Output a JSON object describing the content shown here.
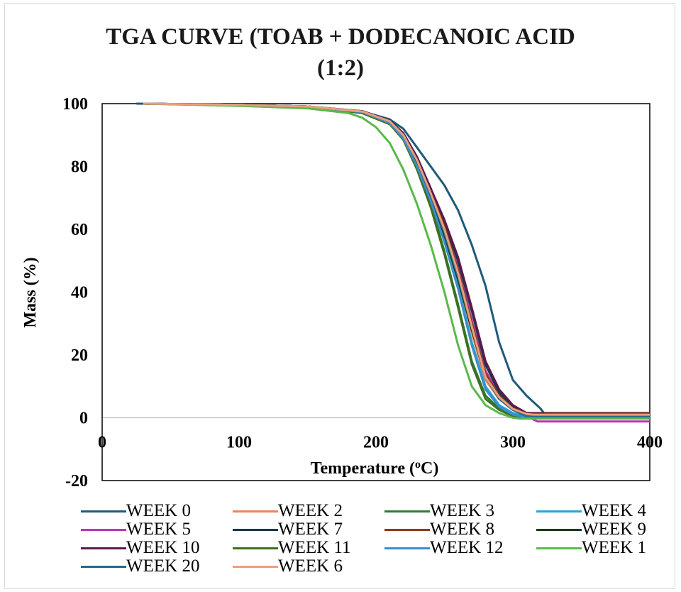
{
  "chart_data": {
    "type": "line",
    "title": "TGA CURVE (TOAB + DODECANOIC ACID (1:2)",
    "title_lines": [
      "TGA CURVE (TOAB + DODECANOIC ACID",
      "(1:2)"
    ],
    "xlabel": "Temperature (oC)",
    "xlabel_pre": "Temperature (",
    "xlabel_sup": "o",
    "xlabel_post": "C)",
    "ylabel": "Mass  (%)",
    "xlim": [
      0,
      400
    ],
    "ylim": [
      -20,
      100
    ],
    "xticks": [
      "0",
      "100",
      "200",
      "300",
      "400"
    ],
    "yticks": [
      "-20",
      "0",
      "20",
      "40",
      "60",
      "80",
      "100"
    ],
    "grid": false,
    "legend_position": "bottom",
    "series": [
      {
        "name": "WEEK 0",
        "color": "#1f5a7a",
        "x": [
          25,
          100,
          150,
          190,
          210,
          220,
          230,
          240,
          250,
          260,
          270,
          280,
          290,
          300,
          310,
          320,
          323,
          350,
          400
        ],
        "y": [
          100,
          99.6,
          99.1,
          97.5,
          95,
          92,
          86,
          80,
          74,
          66,
          55,
          42,
          24,
          12,
          7,
          3,
          1.3,
          1.3,
          1.3
        ]
      },
      {
        "name": "WEEK 2",
        "color": "#e8875a",
        "x": [
          30,
          100,
          150,
          190,
          210,
          220,
          230,
          240,
          250,
          260,
          270,
          280,
          290,
          300,
          310,
          315,
          400
        ],
        "y": [
          100,
          99.6,
          99.1,
          97.3,
          94,
          90,
          82,
          72,
          60,
          45,
          27,
          12,
          6,
          3,
          1.5,
          1.2,
          1.2
        ]
      },
      {
        "name": "WEEK 3",
        "color": "#2e7d32",
        "x": [
          30,
          100,
          150,
          190,
          210,
          220,
          230,
          240,
          250,
          260,
          270,
          280,
          290,
          300,
          310,
          400
        ],
        "y": [
          100,
          99.5,
          99,
          97,
          93.5,
          89,
          80,
          68,
          53,
          36,
          18,
          7,
          3,
          1,
          0,
          0
        ]
      },
      {
        "name": "WEEK 4",
        "color": "#29a3d6",
        "x": [
          30,
          100,
          150,
          190,
          210,
          220,
          230,
          240,
          250,
          260,
          270,
          280,
          290,
          300,
          310,
          320,
          400
        ],
        "y": [
          100,
          99.6,
          99,
          97.4,
          94,
          89.5,
          81,
          70,
          57,
          42,
          24,
          10,
          4,
          1.5,
          0.3,
          0,
          0
        ]
      },
      {
        "name": "WEEK 5",
        "color": "#b339b3",
        "x": [
          30,
          100,
          150,
          190,
          210,
          220,
          230,
          240,
          250,
          260,
          270,
          280,
          290,
          300,
          310,
          318,
          400
        ],
        "y": [
          100,
          99.6,
          99.1,
          97.5,
          94.5,
          90,
          82,
          72,
          61,
          48,
          31,
          15,
          7,
          3,
          0.5,
          -1.2,
          -1.2
        ]
      },
      {
        "name": "WEEK 7",
        "color": "#14384f",
        "x": [
          30,
          100,
          150,
          190,
          210,
          220,
          230,
          240,
          250,
          260,
          270,
          280,
          290,
          300,
          310,
          320,
          400
        ],
        "y": [
          100,
          99.6,
          99.1,
          97.6,
          94.6,
          90.5,
          83,
          73,
          62,
          50,
          34,
          17,
          8,
          3.5,
          1,
          0.5,
          0.5
        ]
      },
      {
        "name": "WEEK 8",
        "color": "#8b3a1a",
        "x": [
          30,
          100,
          150,
          190,
          210,
          220,
          230,
          240,
          250,
          260,
          270,
          280,
          290,
          300,
          310,
          315,
          400
        ],
        "y": [
          100,
          99.6,
          99.1,
          97.5,
          94.4,
          90,
          82,
          72,
          61,
          47,
          30,
          14,
          7,
          3,
          1.5,
          1.5,
          1.5
        ]
      },
      {
        "name": "WEEK 9",
        "color": "#1b3a1b",
        "x": [
          30,
          100,
          150,
          190,
          210,
          220,
          230,
          240,
          250,
          260,
          270,
          280,
          290,
          300,
          310,
          400
        ],
        "y": [
          100,
          99.6,
          99.1,
          97.4,
          94,
          89.5,
          81,
          70,
          58,
          44,
          28,
          13,
          6,
          2.5,
          0.5,
          0.5
        ]
      },
      {
        "name": "WEEK 10",
        "color": "#5a1a4a",
        "x": [
          30,
          100,
          150,
          190,
          210,
          220,
          230,
          240,
          250,
          260,
          270,
          280,
          290,
          300,
          310,
          315,
          400
        ],
        "y": [
          100,
          99.6,
          99.1,
          97.6,
          94.7,
          90.6,
          83,
          73,
          63,
          51,
          35,
          18,
          9,
          4,
          1.5,
          1.3,
          1.3
        ]
      },
      {
        "name": "WEEK 11",
        "color": "#3f6e1f",
        "x": [
          30,
          100,
          150,
          190,
          210,
          220,
          230,
          240,
          250,
          260,
          270,
          280,
          290,
          300,
          310,
          400
        ],
        "y": [
          100,
          99.5,
          99,
          97,
          93.5,
          88.5,
          79,
          67,
          52,
          35,
          17,
          6,
          2.5,
          0.5,
          -0.2,
          -0.2
        ]
      },
      {
        "name": "WEEK 12",
        "color": "#3a8dd0",
        "x": [
          30,
          100,
          150,
          190,
          210,
          220,
          230,
          240,
          250,
          260,
          270,
          280,
          290,
          300,
          310,
          400
        ],
        "y": [
          100,
          99.6,
          99,
          97.3,
          93.8,
          89,
          80,
          69,
          56,
          41,
          23,
          9,
          3.5,
          1,
          0,
          0
        ]
      },
      {
        "name": "WEEK 1",
        "color": "#5ab84a",
        "x": [
          30,
          100,
          150,
          180,
          190,
          200,
          210,
          220,
          230,
          240,
          250,
          260,
          270,
          280,
          290,
          300,
          305,
          400
        ],
        "y": [
          100,
          99.3,
          98.5,
          97,
          95.5,
          92.5,
          87.5,
          79,
          68,
          55,
          40,
          23,
          10,
          4,
          1.5,
          0,
          -0.3,
          -0.3
        ]
      },
      {
        "name": "WEEK 20",
        "color": "#256b8a",
        "x": [
          30,
          100,
          150,
          190,
          210,
          220,
          230,
          240,
          250,
          260,
          270,
          280,
          290,
          300,
          310,
          400
        ],
        "y": [
          100,
          99.6,
          99.1,
          97.5,
          94.5,
          90,
          82,
          71,
          59,
          45,
          29,
          13,
          6,
          2.5,
          0.5,
          0.5
        ]
      },
      {
        "name": "WEEK 6",
        "color": "#eb9f7c",
        "x": [
          30,
          100,
          150,
          190,
          210,
          220,
          230,
          240,
          250,
          260,
          270,
          280,
          290,
          300,
          310,
          315,
          400
        ],
        "y": [
          100,
          99.6,
          99.1,
          97.5,
          94.4,
          90,
          82,
          71.5,
          60,
          46,
          29,
          13,
          6.5,
          2.8,
          1.2,
          1,
          1
        ]
      }
    ]
  }
}
